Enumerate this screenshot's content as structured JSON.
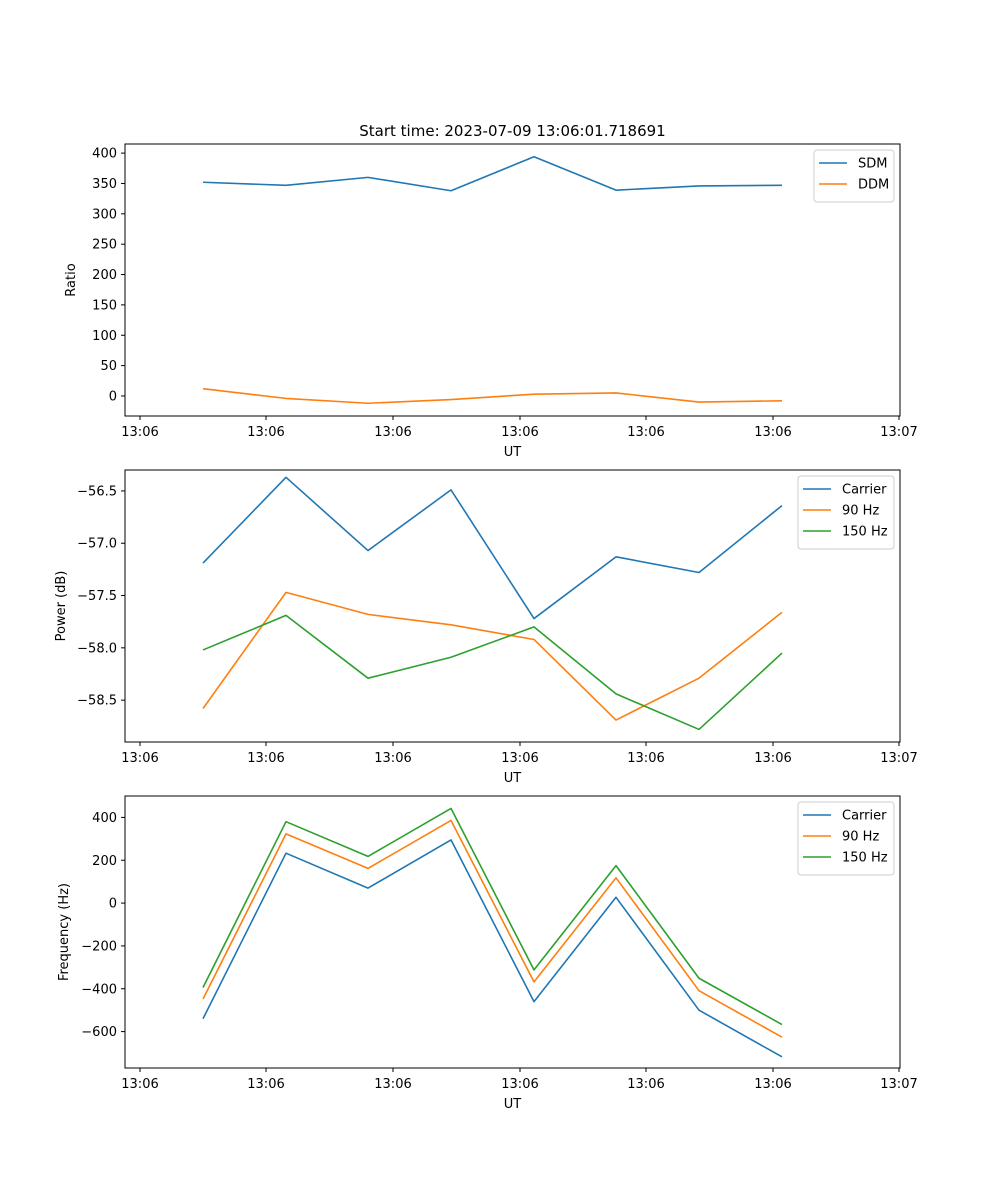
{
  "chart_data": [
    {
      "type": "line",
      "title": "Start time: 2023-07-09 13:06:01.718691",
      "xlabel": "UT",
      "ylabel": "Ratio",
      "x": [
        0,
        1,
        2,
        3,
        4,
        5,
        6,
        7
      ],
      "xlim": [
        -0.5,
        8.3
      ],
      "ylim": [
        -33,
        415
      ],
      "yticks": [
        0,
        50,
        100,
        150,
        200,
        250,
        300,
        350,
        400
      ],
      "ytick_labels": [
        "0",
        "50",
        "100",
        "150",
        "200",
        "250",
        "300",
        "350",
        "400"
      ],
      "xticks": [
        -0.4,
        1.4,
        3.4,
        4.4,
        5.6,
        7,
        8.2
      ],
      "xtick_labels": [
        "13:06",
        "13:06",
        "13:06",
        "13:06",
        "13:06",
        "13:06",
        "13:07"
      ],
      "legend_position": "top-right",
      "series": [
        {
          "name": "SDM",
          "color": "#1f77b4",
          "values": [
            352,
            347,
            360,
            338,
            394,
            339,
            346,
            347
          ]
        },
        {
          "name": "DDM",
          "color": "#ff7f0e",
          "values": [
            12,
            -4,
            -12,
            -6,
            3,
            5,
            -10,
            -8
          ]
        }
      ]
    },
    {
      "type": "line",
      "title": "",
      "xlabel": "UT",
      "ylabel": "Power (dB)",
      "x": [
        0,
        1,
        2,
        3,
        4,
        5,
        6,
        7
      ],
      "xlim": [
        -0.5,
        8.3
      ],
      "ylim": [
        -58.9,
        -56.3
      ],
      "yticks": [
        -58.5,
        -58.0,
        -57.5,
        -57.0,
        -56.5
      ],
      "ytick_labels": [
        "−58.5",
        "−58.0",
        "−57.5",
        "−57.0",
        "−56.5"
      ],
      "xticks": [
        -0.4,
        1.4,
        3.4,
        4.4,
        5.6,
        7,
        8.2
      ],
      "xtick_labels": [
        "13:06",
        "13:06",
        "13:06",
        "13:06",
        "13:06",
        "13:06",
        "13:07"
      ],
      "legend_position": "top-right",
      "series": [
        {
          "name": "Carrier",
          "color": "#1f77b4",
          "values": [
            -57.19,
            -56.37,
            -57.07,
            -56.49,
            -57.72,
            -57.13,
            -57.28,
            -56.64
          ]
        },
        {
          "name": "90 Hz",
          "color": "#ff7f0e",
          "values": [
            -58.58,
            -57.47,
            -57.68,
            -57.78,
            -57.92,
            -58.69,
            -58.29,
            -57.66
          ]
        },
        {
          "name": "150 Hz",
          "color": "#2ca02c",
          "values": [
            -58.02,
            -57.69,
            -58.29,
            -58.09,
            -57.8,
            -58.44,
            -58.78,
            -58.05
          ]
        }
      ]
    },
    {
      "type": "line",
      "title": "",
      "xlabel": "UT",
      "ylabel": "Frequency (Hz)",
      "x": [
        0,
        1,
        2,
        3,
        4,
        5,
        6,
        7
      ],
      "xlim": [
        -0.5,
        8.3
      ],
      "ylim": [
        -770,
        500
      ],
      "yticks": [
        -600,
        -400,
        -200,
        0,
        200,
        400
      ],
      "ytick_labels": [
        "−600",
        "−400",
        "−200",
        "0",
        "200",
        "400"
      ],
      "xticks": [
        -0.4,
        1.4,
        3.4,
        4.4,
        5.6,
        7,
        8.2
      ],
      "xtick_labels": [
        "13:06",
        "13:06",
        "13:06",
        "13:06",
        "13:06",
        "13:06",
        "13:07"
      ],
      "legend_position": "top-right",
      "series": [
        {
          "name": "Carrier",
          "color": "#1f77b4",
          "values": [
            -540,
            233,
            70,
            295,
            -460,
            27,
            -500,
            -718
          ]
        },
        {
          "name": "90 Hz",
          "color": "#ff7f0e",
          "values": [
            -448,
            323,
            162,
            386,
            -368,
            118,
            -409,
            -626
          ]
        },
        {
          "name": "150 Hz",
          "color": "#2ca02c",
          "values": [
            -394,
            380,
            218,
            442,
            -312,
            175,
            -351,
            -567
          ]
        }
      ]
    }
  ]
}
